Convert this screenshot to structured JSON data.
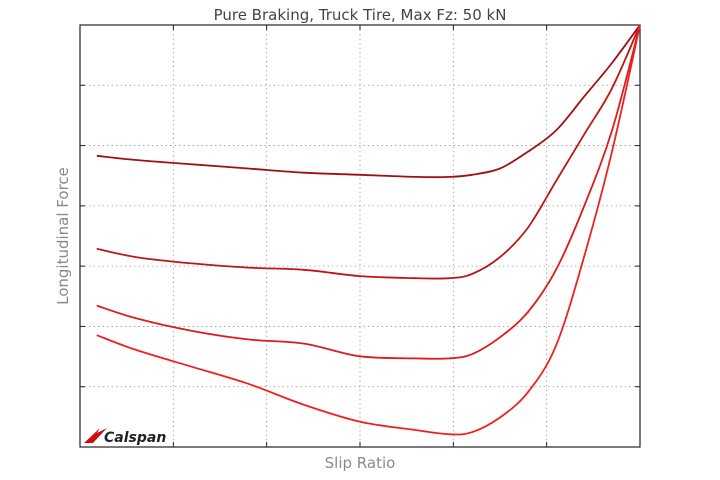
{
  "chart_data": {
    "type": "line",
    "title": "Pure Braking, Truck Tire, Max Fz: 50 kN",
    "xlabel": "Slip Ratio",
    "ylabel": "Longitudinal Force",
    "xlim": [
      0,
      1
    ],
    "ylim": [
      -1,
      0
    ],
    "grid": true,
    "tick_labels_shown": false,
    "x": [
      0.03,
      0.1,
      0.2,
      0.3,
      0.4,
      0.5,
      0.6,
      0.66,
      0.7,
      0.75,
      0.8,
      0.85,
      0.9,
      0.95,
      1.0
    ],
    "series": [
      {
        "values": [
          -0.31,
          -0.32,
          -0.33,
          -0.34,
          -0.35,
          -0.355,
          -0.36,
          -0.36,
          -0.355,
          -0.34,
          -0.3,
          -0.25,
          -0.17,
          -0.09,
          0.0
        ]
      },
      {
        "values": [
          -0.53,
          -0.55,
          -0.565,
          -0.575,
          -0.58,
          -0.595,
          -0.6,
          -0.6,
          -0.59,
          -0.55,
          -0.48,
          -0.37,
          -0.26,
          -0.15,
          0.0
        ]
      },
      {
        "values": [
          -0.665,
          -0.695,
          -0.725,
          -0.745,
          -0.755,
          -0.785,
          -0.79,
          -0.79,
          -0.78,
          -0.74,
          -0.68,
          -0.58,
          -0.43,
          -0.25,
          0.0
        ]
      },
      {
        "values": [
          -0.735,
          -0.77,
          -0.81,
          -0.85,
          -0.9,
          -0.94,
          -0.96,
          -0.97,
          -0.965,
          -0.93,
          -0.87,
          -0.76,
          -0.55,
          -0.3,
          0.0
        ]
      }
    ],
    "series_colors": [
      "#a01010",
      "#c01515",
      "#de1a1a",
      "#f02020"
    ]
  },
  "logo": {
    "text": "Calspan",
    "color": "#cc1111"
  }
}
